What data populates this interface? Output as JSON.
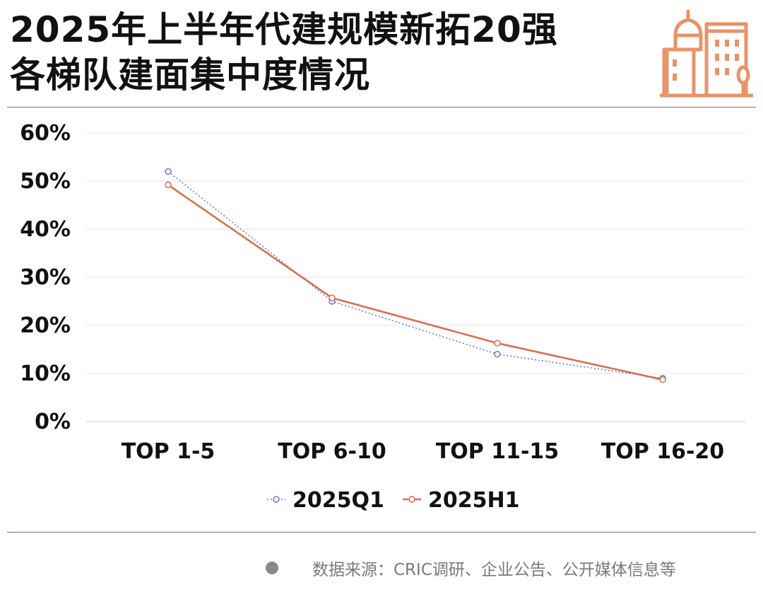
{
  "header": {
    "title_line1": "2025年上半年代建规模新拓20强",
    "title_line2": "各梯队建面集中度情况",
    "logo_icon": "city-buildings-icon",
    "accent_color": "#E8936A"
  },
  "chart_data": {
    "type": "line",
    "categories": [
      "TOP 1-5",
      "TOP 6-10",
      "TOP 11-15",
      "TOP 16-20"
    ],
    "series": [
      {
        "name": "2025Q1",
        "values": [
          52,
          25,
          14,
          9
        ],
        "color": "#6B7FC0",
        "style": "dotted"
      },
      {
        "name": "2025H1",
        "values": [
          49.2,
          25.7,
          16.3,
          8.7
        ],
        "color": "#D9704E",
        "style": "solid"
      }
    ],
    "ylim": [
      0,
      60
    ],
    "yticks": [
      "0%",
      "10%",
      "20%",
      "30%",
      "40%",
      "50%",
      "60%"
    ],
    "grid": true,
    "legend": "bottom-center"
  },
  "footer": {
    "source": "数据来源：CRIC调研、企业公告、公开媒体信息等",
    "bullet_color": "#8A8A8A"
  }
}
